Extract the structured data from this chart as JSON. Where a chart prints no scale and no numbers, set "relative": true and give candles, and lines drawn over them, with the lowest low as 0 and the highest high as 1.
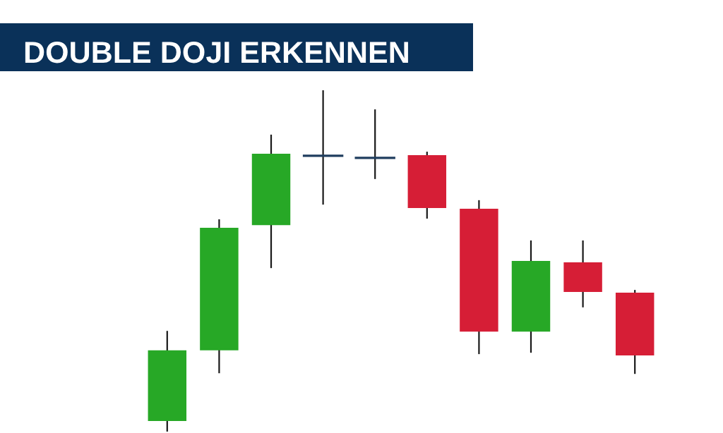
{
  "chart_data": {
    "type": "candlestick",
    "title": "DOUBLE DOJI ERKENNEN",
    "relative": true,
    "categories": [
      null,
      null,
      null,
      null,
      null,
      null,
      null,
      null,
      null,
      null
    ],
    "ohlc": [
      [
        0.031,
        0.295,
        0.0,
        0.238
      ],
      [
        0.238,
        0.622,
        0.171,
        0.597
      ],
      [
        0.605,
        0.87,
        0.479,
        0.814
      ],
      [
        0.808,
        1.0,
        0.665,
        0.808
      ],
      [
        0.802,
        0.944,
        0.74,
        0.802
      ],
      [
        0.81,
        0.82,
        0.624,
        0.655
      ],
      [
        0.653,
        0.678,
        0.227,
        0.293
      ],
      [
        0.293,
        0.56,
        0.231,
        0.5
      ],
      [
        0.496,
        0.56,
        0.364,
        0.409
      ],
      [
        0.407,
        0.415,
        0.169,
        0.223
      ]
    ],
    "colors": [
      "#27a826",
      "#27a826",
      "#27a826",
      "#1f3d5e",
      "#1f3d5e",
      "#d61e36",
      "#d61e36",
      "#27a826",
      "#d61e36",
      "#d61e36"
    ]
  }
}
